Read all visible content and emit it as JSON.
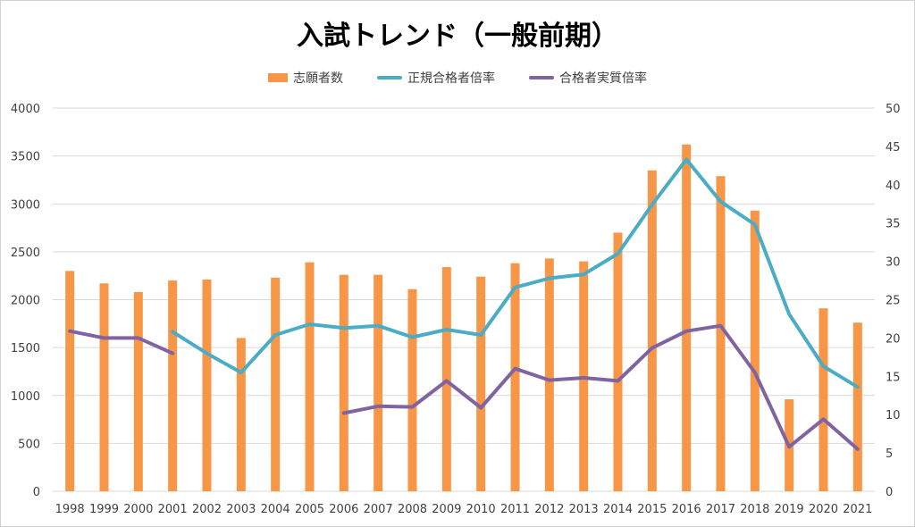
{
  "chart_data": {
    "type": "bar+line",
    "title": "入試トレンド（一般前期）",
    "categories": [
      "1998",
      "1999",
      "2000",
      "2001",
      "2002",
      "2003",
      "2004",
      "2005",
      "2006",
      "2007",
      "2008",
      "2009",
      "2010",
      "2011",
      "2012",
      "2013",
      "2014",
      "2015",
      "2016",
      "2017",
      "2018",
      "2019",
      "2020",
      "2021"
    ],
    "left_axis": {
      "min": 0,
      "max": 4000,
      "ticks": [
        "0",
        "500",
        "1000",
        "1500",
        "2000",
        "2500",
        "3000",
        "3500",
        "4000"
      ]
    },
    "right_axis": {
      "min": 0,
      "max": 50,
      "ticks": [
        "0",
        "5",
        "10",
        "15",
        "20",
        "25",
        "30",
        "35",
        "40",
        "45",
        "50"
      ]
    },
    "grid": true,
    "legend_position": "top",
    "series": [
      {
        "name": "志願者数",
        "kind": "bar",
        "axis": "left",
        "color": "#F79646",
        "values": [
          2300,
          2170,
          2080,
          2200,
          2210,
          1600,
          2230,
          2390,
          2260,
          2260,
          2110,
          2340,
          2240,
          2380,
          2430,
          2400,
          2700,
          3350,
          3620,
          3290,
          2930,
          960,
          1910,
          1760
        ]
      },
      {
        "name": "正規合格者倍率",
        "kind": "line",
        "axis": "right",
        "color": "#4BACC6",
        "values": [
          null,
          null,
          null,
          20.8,
          18.0,
          15.5,
          20.4,
          21.8,
          21.3,
          21.6,
          20.1,
          21.1,
          20.4,
          26.6,
          27.8,
          28.3,
          31.0,
          37.4,
          43.3,
          37.8,
          34.8,
          23.1,
          16.3,
          13.6
        ]
      },
      {
        "name": "合格者実質倍率",
        "kind": "line",
        "axis": "right",
        "color": "#8064A2",
        "values": [
          20.9,
          20.0,
          20.0,
          18.0,
          null,
          null,
          null,
          null,
          10.2,
          11.1,
          11.0,
          14.4,
          10.9,
          16.0,
          14.5,
          14.8,
          14.4,
          18.7,
          20.9,
          21.6,
          15.5,
          5.8,
          9.4,
          5.5
        ]
      }
    ]
  }
}
